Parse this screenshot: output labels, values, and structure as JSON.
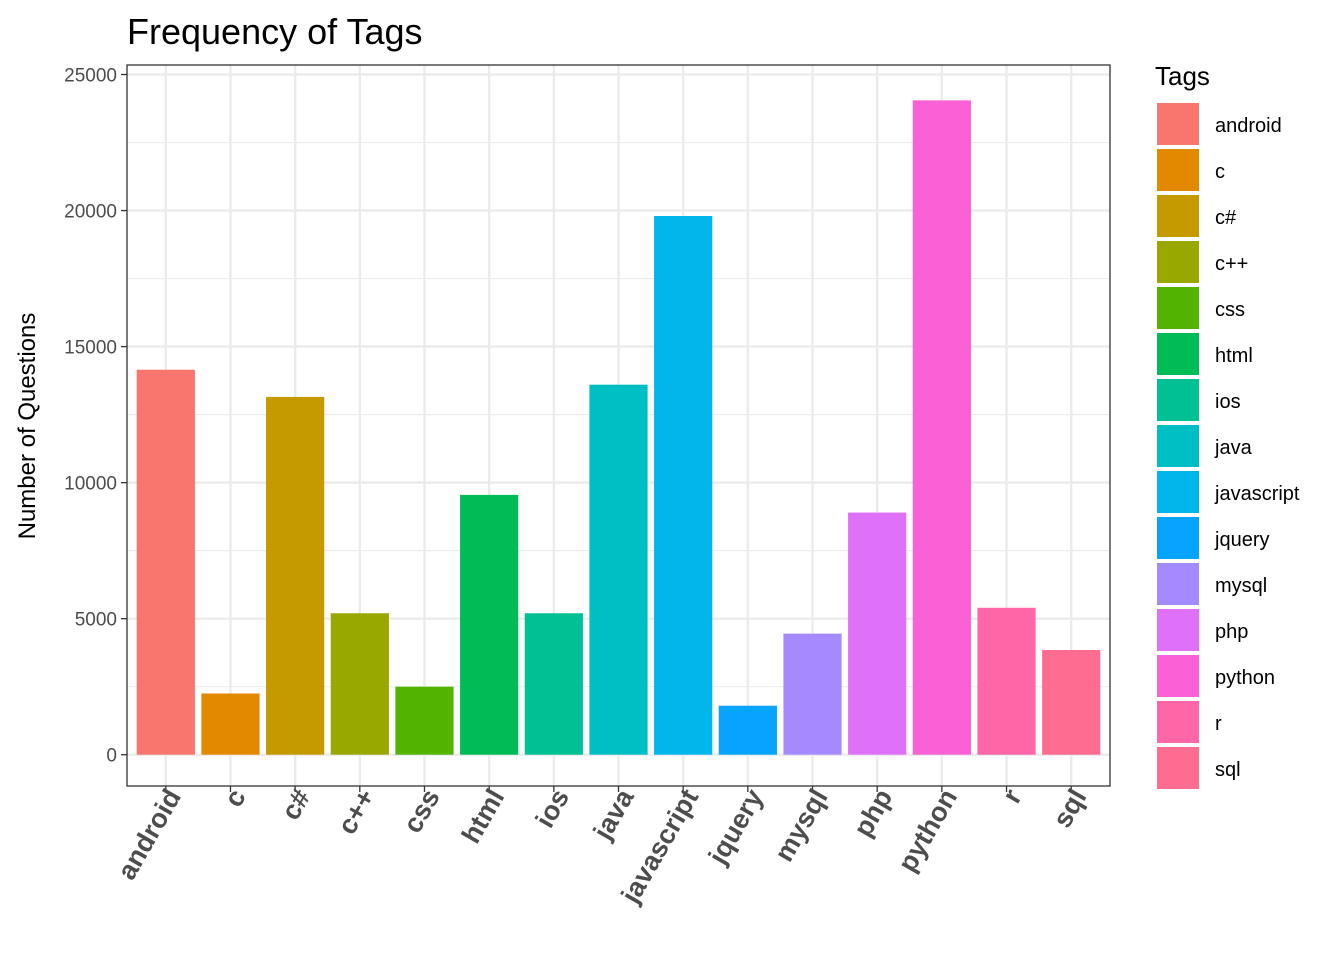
{
  "chart_data": {
    "type": "bar",
    "title": "Frequency of Tags",
    "xlabel": "",
    "ylabel": "Number of Questions",
    "categories": [
      "android",
      "c",
      "c#",
      "c++",
      "css",
      "html",
      "ios",
      "java",
      "javascript",
      "jquery",
      "mysql",
      "php",
      "python",
      "r",
      "sql"
    ],
    "values": [
      14150,
      2250,
      13150,
      5200,
      2500,
      9550,
      5200,
      13600,
      19800,
      1800,
      4450,
      8900,
      24050,
      5400,
      3850
    ],
    "colors": [
      "#F8766D",
      "#E38900",
      "#C49A00",
      "#99A800",
      "#53B400",
      "#00BC56",
      "#00C094",
      "#00BFC4",
      "#00B6EB",
      "#06A4FF",
      "#A58AFF",
      "#DF70F8",
      "#FB61D7",
      "#FF66A8",
      "#FF6C91"
    ],
    "yticks": [
      0,
      5000,
      10000,
      15000,
      20000,
      25000
    ],
    "ylim": [
      -1150,
      25350
    ],
    "grid": true,
    "legend": {
      "title": "Tags",
      "placement": "right"
    }
  }
}
